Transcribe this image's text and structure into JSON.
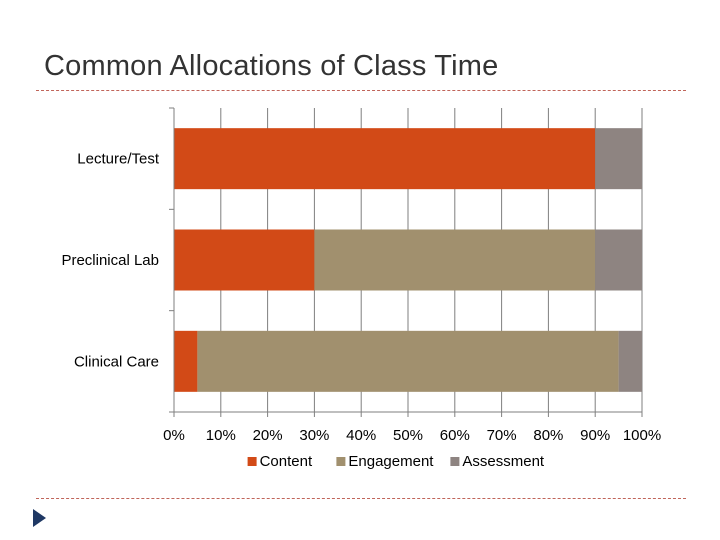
{
  "slide": {
    "title": "Common Allocations of Class Time"
  },
  "colors": {
    "content": "#d24a17",
    "engagement": "#a1906e",
    "assessment": "#8e8481",
    "grid": "#7f7f7f",
    "axis": "#7f7f7f",
    "accent_rule": "#c0655a",
    "arrow": "#1f3864"
  },
  "chart_data": {
    "type": "bar",
    "orientation": "horizontal",
    "stacked": true,
    "title": "",
    "categories": [
      "Lecture/Test",
      "Preclinical Lab",
      "Clinical Care"
    ],
    "series": [
      {
        "name": "Content",
        "values": [
          90,
          30,
          5
        ],
        "color_key": "content"
      },
      {
        "name": "Engagement",
        "values": [
          0,
          60,
          90
        ],
        "color_key": "engagement"
      },
      {
        "name": "Assessment",
        "values": [
          10,
          10,
          5
        ],
        "color_key": "assessment"
      }
    ],
    "xlim": [
      0,
      100
    ],
    "xticks": [
      0,
      10,
      20,
      30,
      40,
      50,
      60,
      70,
      80,
      90,
      100
    ],
    "xtick_labels": [
      "0%",
      "10%",
      "20%",
      "30%",
      "40%",
      "50%",
      "60%",
      "70%",
      "80%",
      "90%",
      "100%"
    ],
    "xlabel": "",
    "ylabel": "",
    "grid": true,
    "legend_position": "bottom"
  }
}
